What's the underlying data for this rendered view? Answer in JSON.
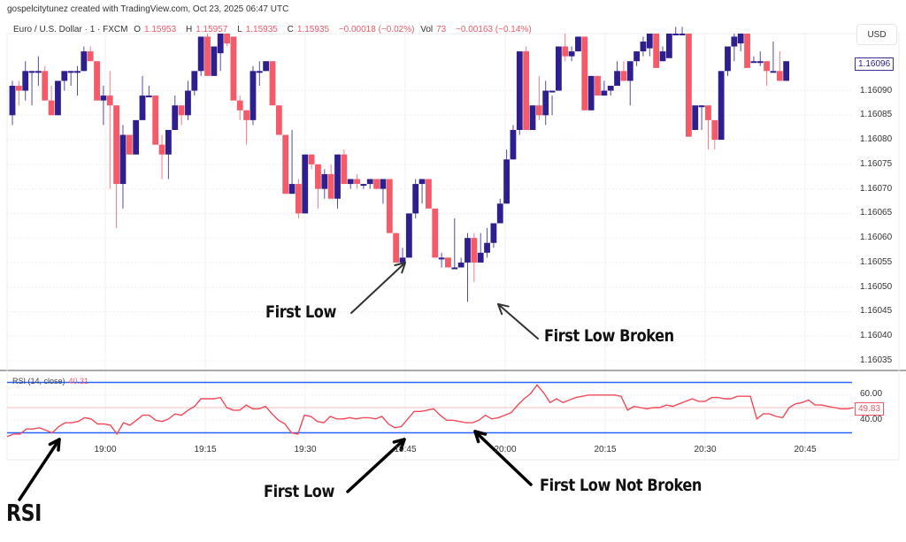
{
  "header": {
    "creator_text": "gospelcitytunez created with TradingView.com, Oct 23, 2025 06:47 UTC",
    "symbol": "Euro / U.S. Dollar · 1 · FXCM",
    "open_label": "O",
    "open": "1.15953",
    "high_label": "H",
    "high": "1.15957",
    "low_label": "L",
    "low": "1.15935",
    "close_label": "C",
    "close": "1.15935",
    "change": "−0.00018 (−0.02%)",
    "vol_label": "Vol",
    "vol": "73",
    "change2": "−0.00163 (−0.14%)"
  },
  "price_axis": {
    "currency": "USD",
    "current_price": "1.16096",
    "ticks": [
      "1.16090",
      "1.16085",
      "1.16080",
      "1.16075",
      "1.16070",
      "1.16065",
      "1.16060",
      "1.16055",
      "1.16050",
      "1.16045",
      "1.16040",
      "1.16035"
    ]
  },
  "rsi": {
    "label": "RSI (14, close)",
    "value": "40.31",
    "current": "49.83",
    "ticks": [
      "60.00",
      "40.00"
    ]
  },
  "time_axis": {
    "ticks": [
      "19:00",
      "19:15",
      "19:30",
      "19:45",
      "20:00",
      "20:15",
      "20:30",
      "20:45"
    ]
  },
  "annotations": {
    "price_first_low": "First Low",
    "price_first_low_broken": "First Low Broken",
    "rsi_first_low": "First Low",
    "rsi_first_low_not_broken": "First Low Not Broken",
    "rsi_label": "RSI"
  },
  "colors": {
    "up": "#2e1f8e",
    "down": "#f45a68",
    "rsi_line": "#f04a5a",
    "band": "#2962ff",
    "mid": "#f9c9cc"
  },
  "chart_data": [
    {
      "type": "candlestick",
      "title": "Euro / U.S. Dollar · 1 · FXCM",
      "xlabel": "",
      "ylabel": "USD",
      "ylim": [
        1.16033,
        1.16103
      ],
      "x_ticks": [
        "19:00",
        "19:15",
        "19:30",
        "19:45",
        "20:00",
        "20:15",
        "20:30",
        "20:45"
      ],
      "candles_ohlc": [
        [
          1.16085,
          1.16092,
          1.16083,
          1.16091
        ],
        [
          1.16091,
          1.16092,
          1.16087,
          1.1609
        ],
        [
          1.1609,
          1.16096,
          1.16088,
          1.16094
        ],
        [
          1.16094,
          1.16094,
          1.16087,
          1.16094
        ],
        [
          1.16094,
          1.16097,
          1.16091,
          1.16094
        ],
        [
          1.16094,
          1.16095,
          1.16088,
          1.16088
        ],
        [
          1.16088,
          1.16091,
          1.16085,
          1.16085
        ],
        [
          1.16085,
          1.16092,
          1.16085,
          1.16092
        ],
        [
          1.16092,
          1.16094,
          1.1609,
          1.16094
        ],
        [
          1.16094,
          1.16094,
          1.16091,
          1.16094
        ],
        [
          1.16094,
          1.16095,
          1.16089,
          1.16094
        ],
        [
          1.16094,
          1.16099,
          1.16094,
          1.16098
        ],
        [
          1.16098,
          1.16099,
          1.16096,
          1.16096
        ],
        [
          1.16096,
          1.16096,
          1.16088,
          1.16088
        ],
        [
          1.16088,
          1.16091,
          1.16083,
          1.16089
        ],
        [
          1.16089,
          1.16094,
          1.1607,
          1.16087
        ],
        [
          1.16087,
          1.16087,
          1.16062,
          1.16071
        ],
        [
          1.16071,
          1.16083,
          1.16066,
          1.16081
        ],
        [
          1.16081,
          1.16081,
          1.16077,
          1.16077
        ],
        [
          1.16077,
          1.16084,
          1.16077,
          1.16084
        ],
        [
          1.16084,
          1.16093,
          1.16084,
          1.16089
        ],
        [
          1.16089,
          1.16091,
          1.16089,
          1.16089
        ],
        [
          1.16089,
          1.16089,
          1.16079,
          1.16079
        ],
        [
          1.16079,
          1.16081,
          1.16072,
          1.16077
        ],
        [
          1.16077,
          1.16082,
          1.16072,
          1.16082
        ],
        [
          1.16082,
          1.16089,
          1.16082,
          1.16087
        ],
        [
          1.16087,
          1.16087,
          1.16083,
          1.16085
        ],
        [
          1.16085,
          1.16092,
          1.16084,
          1.1609
        ],
        [
          1.1609,
          1.16094,
          1.16089,
          1.16094
        ],
        [
          1.16094,
          1.16101,
          1.16093,
          1.16101
        ],
        [
          1.16101,
          1.16102,
          1.16093,
          1.16093
        ],
        [
          1.16093,
          1.16098,
          1.16093,
          1.16099
        ],
        [
          1.16099,
          1.16103,
          1.16094,
          1.16103
        ],
        [
          1.16103,
          1.16103,
          1.16099,
          1.16101
        ],
        [
          1.16101,
          1.16101,
          1.16088,
          1.16088
        ],
        [
          1.16088,
          1.16089,
          1.16084,
          1.16086
        ],
        [
          1.16086,
          1.16086,
          1.16079,
          1.16084
        ],
        [
          1.16084,
          1.16095,
          1.16083,
          1.16094
        ],
        [
          1.16094,
          1.16096,
          1.16091,
          1.16094
        ],
        [
          1.16094,
          1.16095,
          1.16094,
          1.16096
        ],
        [
          1.16096,
          1.16096,
          1.16087,
          1.16087
        ],
        [
          1.16087,
          1.16087,
          1.16081,
          1.16081
        ],
        [
          1.16081,
          1.16081,
          1.16069,
          1.16069
        ],
        [
          1.16069,
          1.16082,
          1.16069,
          1.16071
        ],
        [
          1.16071,
          1.16072,
          1.16064,
          1.16065
        ],
        [
          1.16065,
          1.16077,
          1.16065,
          1.16077
        ],
        [
          1.16077,
          1.16077,
          1.16074,
          1.16075
        ],
        [
          1.16075,
          1.16075,
          1.16066,
          1.1607
        ],
        [
          1.1607,
          1.16074,
          1.16068,
          1.16073
        ],
        [
          1.16073,
          1.16075,
          1.16069,
          1.16068
        ],
        [
          1.16068,
          1.16077,
          1.16066,
          1.16077
        ],
        [
          1.16077,
          1.16078,
          1.16071,
          1.16071
        ],
        [
          1.16071,
          1.16072,
          1.1607,
          1.16072
        ],
        [
          1.16072,
          1.16073,
          1.1607,
          1.16071
        ],
        [
          1.16071,
          1.16071,
          1.1607,
          1.16071
        ],
        [
          1.16071,
          1.16072,
          1.1607,
          1.16072
        ],
        [
          1.16072,
          1.16072,
          1.1607,
          1.1607
        ],
        [
          1.1607,
          1.16072,
          1.16067,
          1.16072
        ],
        [
          1.16072,
          1.16072,
          1.16061,
          1.16061
        ],
        [
          1.16061,
          1.16061,
          1.16055,
          1.16055
        ],
        [
          1.16055,
          1.16058,
          1.16055,
          1.16056
        ],
        [
          1.16056,
          1.16065,
          1.16056,
          1.16065
        ],
        [
          1.16065,
          1.16072,
          1.16064,
          1.16071
        ],
        [
          1.16071,
          1.16072,
          1.16067,
          1.16072
        ],
        [
          1.16072,
          1.16072,
          1.16067,
          1.16066
        ],
        [
          1.16066,
          1.16066,
          1.16056,
          1.16056
        ],
        [
          1.16056,
          1.16057,
          1.16054,
          1.16056
        ],
        [
          1.16056,
          1.16056,
          1.16054,
          1.16054
        ],
        [
          1.16054,
          1.16064,
          1.16054,
          1.16054
        ],
        [
          1.16054,
          1.16056,
          1.16054,
          1.16055
        ],
        [
          1.16055,
          1.16061,
          1.16047,
          1.1606
        ],
        [
          1.1606,
          1.16061,
          1.16051,
          1.16055
        ],
        [
          1.16055,
          1.16061,
          1.16055,
          1.16057
        ],
        [
          1.16057,
          1.16062,
          1.16056,
          1.16059
        ],
        [
          1.16059,
          1.16063,
          1.16058,
          1.16063
        ],
        [
          1.16063,
          1.16068,
          1.16063,
          1.16067
        ],
        [
          1.16067,
          1.16078,
          1.16067,
          1.16076
        ],
        [
          1.16076,
          1.16083,
          1.16076,
          1.16082
        ],
        [
          1.16082,
          1.1609,
          1.16081,
          1.16098
        ],
        [
          1.16098,
          1.16099,
          1.16082,
          1.16082
        ],
        [
          1.16082,
          1.16087,
          1.16082,
          1.16087
        ],
        [
          1.16087,
          1.16093,
          1.16084,
          1.16085
        ],
        [
          1.16085,
          1.16092,
          1.16083,
          1.1609
        ],
        [
          1.1609,
          1.16089,
          1.16085,
          1.1609
        ],
        [
          1.1609,
          1.16099,
          1.1609,
          1.16099
        ],
        [
          1.16099,
          1.16102,
          1.16096,
          1.16097
        ],
        [
          1.16097,
          1.16099,
          1.16096,
          1.16098
        ],
        [
          1.16098,
          1.16101,
          1.16098,
          1.16101
        ],
        [
          1.16101,
          1.16101,
          1.16086,
          1.16086
        ],
        [
          1.16086,
          1.16093,
          1.16086,
          1.16093
        ],
        [
          1.16093,
          1.16093,
          1.16089,
          1.16089
        ],
        [
          1.16089,
          1.16092,
          1.16089,
          1.1609
        ],
        [
          1.1609,
          1.16091,
          1.16089,
          1.16091
        ],
        [
          1.16091,
          1.16096,
          1.16091,
          1.16094
        ],
        [
          1.16094,
          1.16096,
          1.16092,
          1.16092
        ],
        [
          1.16092,
          1.16094,
          1.16087,
          1.16096
        ],
        [
          1.16096,
          1.16098,
          1.16095,
          1.16098
        ],
        [
          1.16098,
          1.16101,
          1.16097,
          1.161
        ],
        [
          1.161,
          1.16103,
          1.16097,
          1.16103
        ],
        [
          1.16103,
          1.16103,
          1.16096,
          1.16096
        ],
        [
          1.16096,
          1.16099,
          1.16096,
          1.16098
        ],
        [
          1.16098,
          1.16103,
          1.16098,
          1.16103
        ],
        [
          1.16103,
          1.16103,
          1.16103,
          1.16103
        ],
        [
          1.16103,
          1.16103,
          1.16103,
          1.16103
        ],
        [
          1.16103,
          1.16103,
          1.16082,
          1.16082
        ],
        [
          1.16082,
          1.16085,
          1.16082,
          1.16087
        ],
        [
          1.16087,
          1.16087,
          1.16082,
          1.16087
        ],
        [
          1.16087,
          1.16085,
          1.16078,
          1.16084
        ],
        [
          1.16084,
          1.16084,
          1.16078,
          1.1608
        ],
        [
          1.1608,
          1.16094,
          1.1608,
          1.16094
        ],
        [
          1.16094,
          1.16099,
          1.16093,
          1.16099
        ],
        [
          1.16099,
          1.16102,
          1.16096,
          1.16101
        ],
        [
          1.16101,
          1.16103,
          1.16098,
          1.16103
        ],
        [
          1.16103,
          1.16103,
          1.16096,
          1.16096
        ],
        [
          1.16096,
          1.16097,
          1.16096,
          1.16096
        ],
        [
          1.16096,
          1.16098,
          1.16095,
          1.16096
        ],
        [
          1.16096,
          1.16096,
          1.16091,
          1.16094
        ],
        [
          1.16094,
          1.161,
          1.16094,
          1.16094
        ],
        [
          1.16094,
          1.16098,
          1.16092,
          1.16092
        ],
        [
          1.16092,
          1.16092,
          1.16092,
          1.16096
        ]
      ],
      "current_price": 1.16096,
      "annotations": [
        "First Low (~1.16055 near 19:44)",
        "First Low Broken (~1.16047 near 19:58)"
      ]
    },
    {
      "type": "line",
      "title": "RSI (14, close)",
      "ylim": [
        20,
        80
      ],
      "bands": [
        70,
        30
      ],
      "midline": 50,
      "y_ticks": [
        60,
        40
      ],
      "current_value": 49.83,
      "legend_value": 40.31,
      "values": [
        27,
        29,
        29,
        33,
        33,
        34,
        32,
        30,
        35,
        38,
        38,
        39,
        42,
        41,
        37,
        37,
        36,
        29,
        38,
        36,
        40,
        44,
        44,
        40,
        39,
        41,
        45,
        44,
        48,
        51,
        57,
        57,
        57,
        58,
        50,
        48,
        48,
        52,
        49,
        49,
        51,
        45,
        40,
        37,
        30,
        29,
        44,
        43,
        39,
        38,
        43,
        41,
        41,
        42,
        41,
        42,
        42,
        41,
        43,
        37,
        34,
        35,
        41,
        47,
        47,
        48,
        49,
        44,
        40,
        40,
        39,
        38,
        38,
        40,
        44,
        41,
        42,
        44,
        46,
        52,
        57,
        61,
        68,
        62,
        54,
        57,
        54,
        56,
        58,
        59,
        60,
        60,
        60,
        60,
        60,
        59,
        48,
        51,
        50,
        49,
        50,
        50,
        52,
        51,
        53,
        55,
        57,
        55,
        55,
        58,
        58,
        57,
        57,
        59,
        59,
        59,
        41,
        45,
        45,
        43,
        42,
        50,
        53,
        54,
        56,
        52,
        52,
        51,
        50,
        49,
        49,
        50
      ],
      "annotations": [
        "RSI",
        "First Low (~34 near 19:44)",
        "First Low Not Broken (~36 near 19:58)"
      ]
    }
  ]
}
